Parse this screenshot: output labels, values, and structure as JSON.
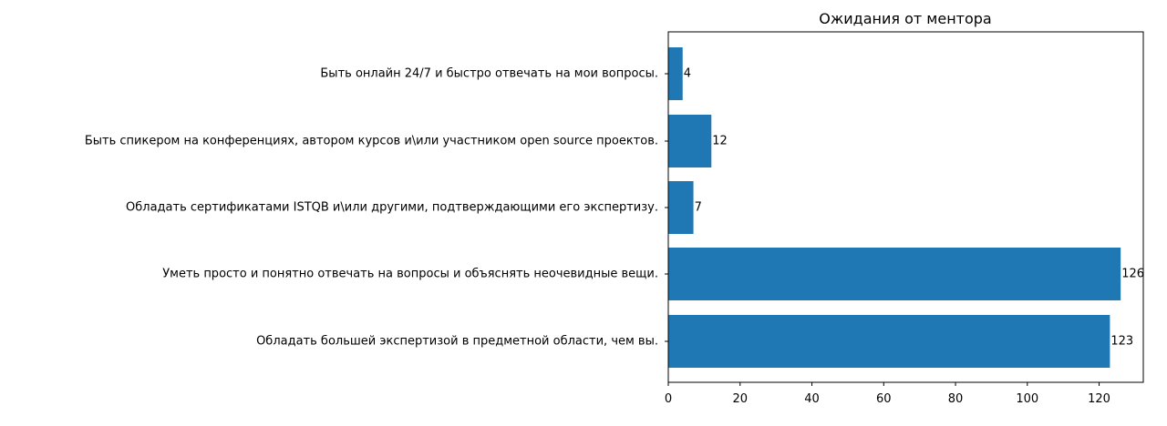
{
  "chart_data": {
    "type": "bar",
    "orientation": "horizontal",
    "title": "Ожидания от ментора",
    "xlabel": "",
    "ylabel": "",
    "categories": [
      "Обладать большей экспертизой в предметной области, чем вы.",
      "Уметь просто и понятно отвечать на вопросы и объяснять неочевидные вещи.",
      "Обладать сертификатами ISTQB и\\или другими, подтверждающими его экспертизу.",
      "Быть спикером на конференциях, автором курсов и\\или участником open source проектов.",
      "Быть онлайн 24/7 и быстро отвечать на мои вопросы."
    ],
    "values": [
      123,
      126,
      7,
      12,
      4
    ],
    "data_labels": [
      "123",
      "126",
      "7",
      "12",
      "4"
    ],
    "xlim": [
      0,
      132.3
    ],
    "xticks": [
      0,
      20,
      40,
      60,
      80,
      100,
      120
    ],
    "xtick_labels": [
      "0",
      "20",
      "40",
      "60",
      "80",
      "100",
      "120"
    ],
    "bar_color": "#1f77b4",
    "grid": false,
    "legend": "none"
  }
}
